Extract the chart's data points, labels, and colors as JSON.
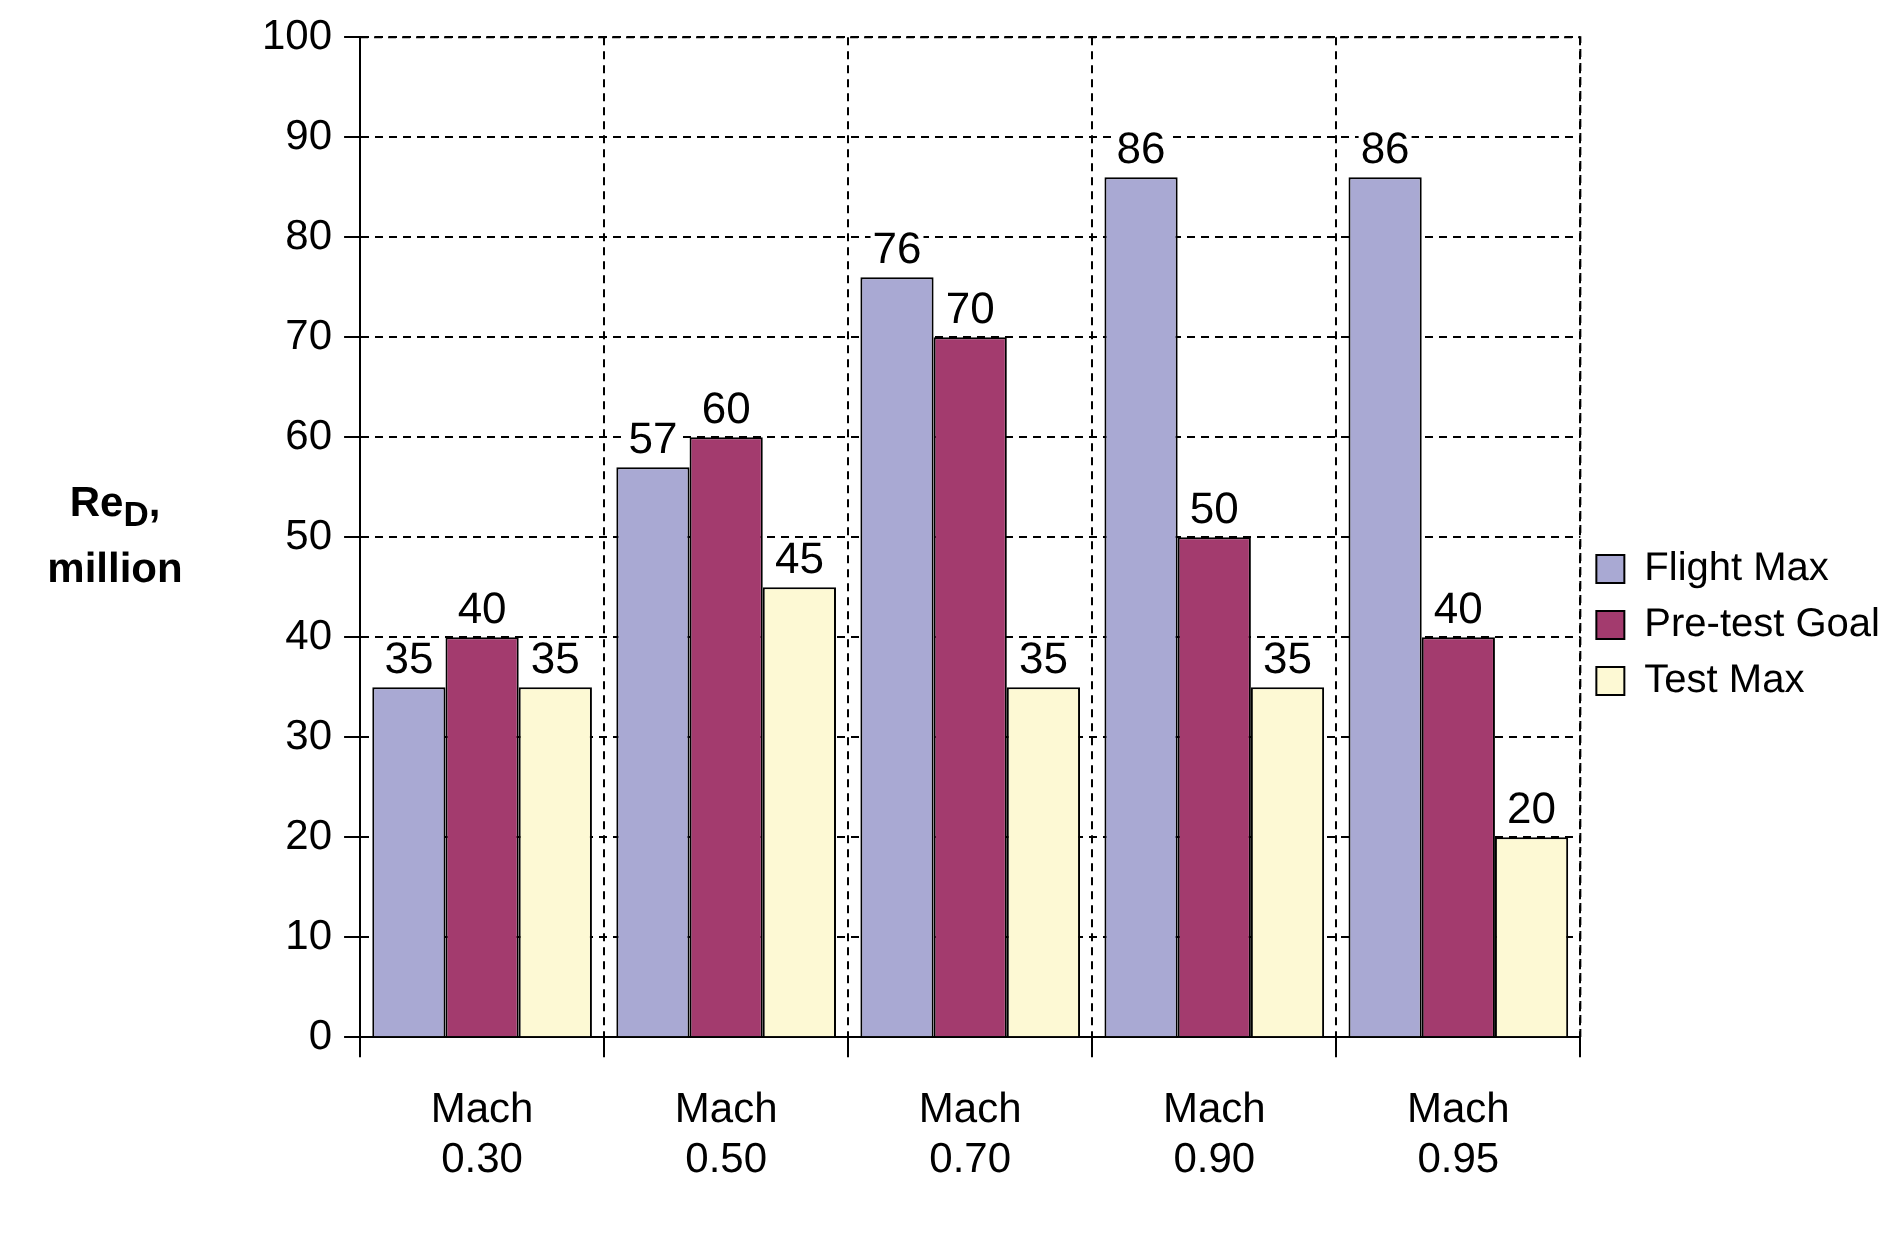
{
  "chart_data": {
    "type": "bar",
    "ylabel": "Re$_{D}$,\nmillion",
    "categories": [
      "Mach\n0.30",
      "Mach\n0.50",
      "Mach\n0.70",
      "Mach\n0.90",
      "Mach\n0.95"
    ],
    "series": [
      {
        "name": "Flight Max",
        "color": "#a9a9d3",
        "values": [
          35,
          57,
          76,
          86,
          86
        ]
      },
      {
        "name": "Pre-test Goal",
        "color": "#a33b6e",
        "values": [
          40,
          60,
          70,
          50,
          40
        ]
      },
      {
        "name": "Test Max",
        "color": "#fdf9d4",
        "values": [
          35,
          45,
          35,
          35,
          20
        ]
      }
    ],
    "ylim": [
      0,
      100
    ],
    "yticks": [
      0,
      10,
      20,
      30,
      40,
      50,
      60,
      70,
      80,
      90,
      100
    ],
    "grid": true,
    "legend": "right",
    "data_labels": true
  }
}
